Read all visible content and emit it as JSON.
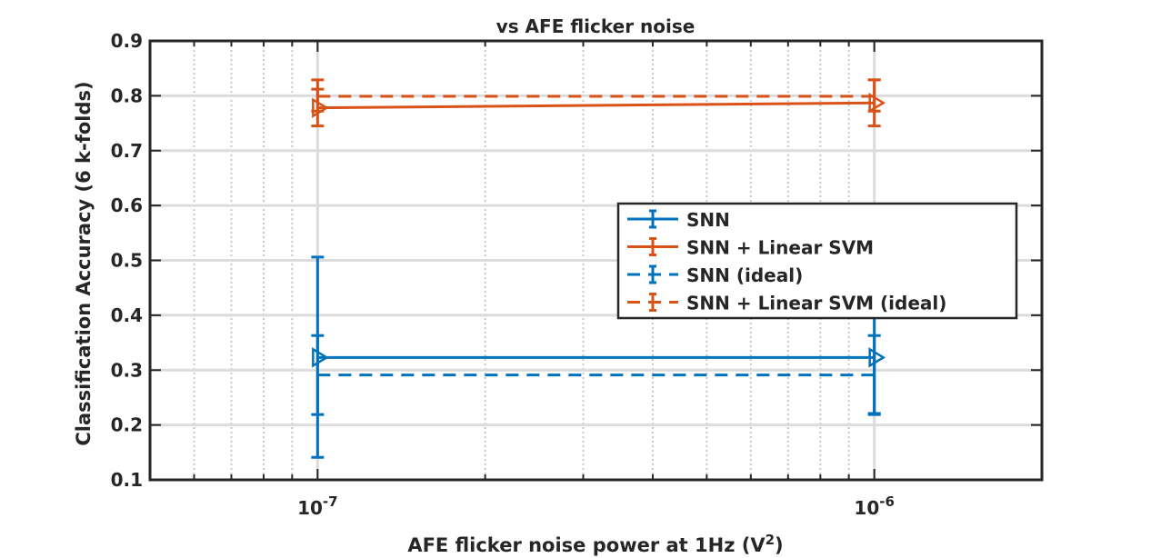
{
  "chart_data": {
    "type": "line",
    "title": "vs AFE flicker noise",
    "xlabel_prefix": "AFE flicker noise power at 1Hz (V",
    "xlabel_sup": "2",
    "xlabel_suffix": ")",
    "ylabel": "Classification Accuracy (6 k-folds)",
    "x_scale": "log",
    "xlim": [
      5e-08,
      2e-06
    ],
    "ylim": [
      0.1,
      0.9
    ],
    "yticks": [
      0.1,
      0.2,
      0.3,
      0.4,
      0.5,
      0.6,
      0.7,
      0.8,
      0.9
    ],
    "ytick_labels": [
      "0.1",
      "0.2",
      "0.3",
      "0.4",
      "0.5",
      "0.6",
      "0.7",
      "0.8",
      "0.9"
    ],
    "xticks": [
      {
        "value": 1e-07,
        "base": "10",
        "exp": "-7"
      },
      {
        "value": 1e-06,
        "base": "10",
        "exp": "-6"
      }
    ],
    "grid": true,
    "minor_grid_x": true,
    "legend_position": "middle-right",
    "series": [
      {
        "name": "SNN",
        "color": "#0072BD",
        "dashed": false,
        "x": [
          1e-07,
          1e-06
        ],
        "y": [
          0.323,
          0.323
        ],
        "err_low": [
          0.141,
          0.221
        ],
        "err_high": [
          0.506,
          0.425
        ]
      },
      {
        "name": "SNN + Linear SVM",
        "color": "#D95319",
        "dashed": false,
        "x": [
          1e-07,
          1e-06
        ],
        "y": [
          0.778,
          0.787
        ],
        "err_low": [
          0.745,
          0.745
        ],
        "err_high": [
          0.812,
          0.829
        ]
      },
      {
        "name": "SNN (ideal)",
        "color": "#0072BD",
        "dashed": true,
        "x": [
          1e-07,
          1e-06
        ],
        "y": [
          0.291,
          0.291
        ],
        "err_low": [
          0.219,
          0.219
        ],
        "err_high": [
          0.363,
          0.363
        ]
      },
      {
        "name": "SNN + Linear SVM (ideal)",
        "color": "#D95319",
        "dashed": true,
        "x": [
          1e-07,
          1e-06
        ],
        "y": [
          0.799,
          0.799
        ],
        "err_low": [
          0.772,
          0.772
        ],
        "err_high": [
          0.829,
          0.829
        ]
      }
    ]
  }
}
